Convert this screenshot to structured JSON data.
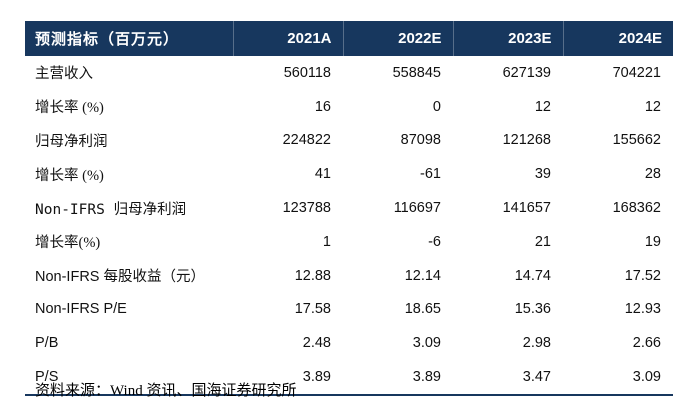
{
  "chart_data": {
    "type": "table",
    "title": "预测指标（百万元）",
    "columns": [
      "2021A",
      "2022E",
      "2023E",
      "2024E"
    ],
    "rows": [
      {
        "label": "主营收入",
        "values": [
          "560118",
          "558845",
          "627139",
          "704221"
        ]
      },
      {
        "label": "增长率 (%)",
        "values": [
          "16",
          "0",
          "12",
          "12"
        ]
      },
      {
        "label": "归母净利润",
        "values": [
          "224822",
          "87098",
          "121268",
          "155662"
        ]
      },
      {
        "label": "增长率 (%)",
        "values": [
          "41",
          "-61",
          "39",
          "28"
        ]
      },
      {
        "label": "Non-IFRS 归母净利润",
        "values": [
          "123788",
          "116697",
          "141657",
          "168362"
        ]
      },
      {
        "label": "增长率(%)",
        "values": [
          "1",
          "-6",
          "21",
          "19"
        ]
      },
      {
        "label": "Non-IFRS 每股收益（元）",
        "values": [
          "12.88",
          "12.14",
          "14.74",
          "17.52"
        ]
      },
      {
        "label": "Non-IFRS P/E",
        "values": [
          "17.58",
          "18.65",
          "15.36",
          "12.93"
        ]
      },
      {
        "label": "P/B",
        "values": [
          "2.48",
          "3.09",
          "2.98",
          "2.66"
        ]
      },
      {
        "label": "P/S",
        "values": [
          "3.89",
          "3.89",
          "3.47",
          "3.09"
        ]
      }
    ],
    "source_note": "资料来源：Wind 资讯、国海证券研究所",
    "colors": {
      "header_bg": "#17375e",
      "header_text": "#ffffff",
      "rule": "#17375e",
      "body_text": "#111111"
    }
  }
}
